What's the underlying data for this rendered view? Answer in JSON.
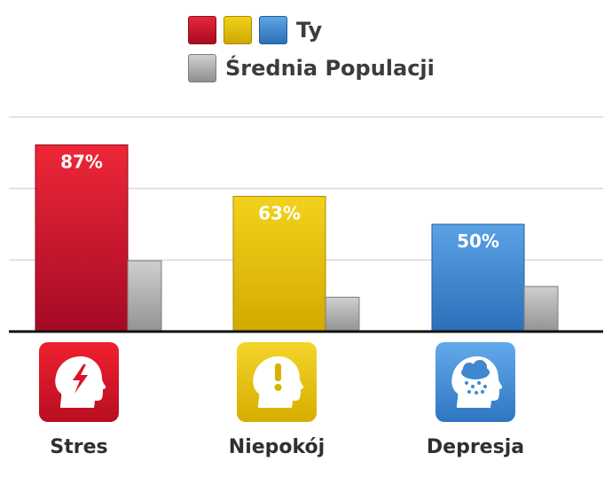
{
  "legend": {
    "you_label": "Ty",
    "population_label": "Średnia Populacji"
  },
  "colors": {
    "stres": "#d8142b",
    "niepokoj": "#e2bd00",
    "depresja": "#3f87cf",
    "population": "#b0b0b0"
  },
  "icons": [
    "head-lightning-icon",
    "head-exclamation-icon",
    "head-raincloud-icon"
  ],
  "chart_data": {
    "type": "bar",
    "categories": [
      "Stres",
      "Niepokój",
      "Depresja"
    ],
    "series": [
      {
        "name": "Ty",
        "values": [
          87,
          63,
          50
        ],
        "labels": [
          "87%",
          "63%",
          "50%"
        ]
      },
      {
        "name": "Średnia Populacji",
        "values": [
          33,
          16,
          21
        ]
      }
    ],
    "ylim": [
      0,
      100
    ],
    "grid": true,
    "legend_position": "top-center"
  }
}
